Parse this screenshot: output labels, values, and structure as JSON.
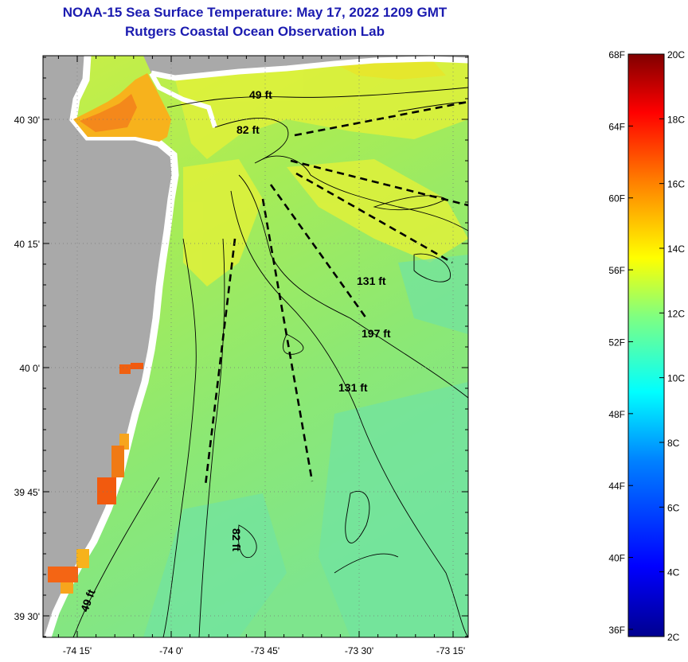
{
  "title": "NOAA-15 Sea Surface Temperature:  May 17, 2022 1209 GMT",
  "subtitle": "Rutgers Coastal Ocean Observation Lab",
  "y_ticks": [
    "40 30'",
    "40 15'",
    "40 0'",
    "39 45'",
    "39 30'"
  ],
  "x_ticks": [
    "-74 15'",
    "-74 0'",
    "-73 45'",
    "-73 30'",
    "-73 15'"
  ],
  "isobath_labels": [
    "49 ft",
    "82 ft",
    "131 ft",
    "197 ft",
    "131 ft",
    "82 ft",
    "49 ft"
  ],
  "colorbar": {
    "fahrenheit_labels": [
      "68F",
      "64F",
      "60F",
      "56F",
      "52F",
      "48F",
      "44F",
      "40F",
      "36F"
    ],
    "celsius_labels": [
      "20C",
      "18C",
      "16C",
      "14C",
      "12C",
      "10C",
      "8C",
      "6C",
      "4C",
      "2C"
    ],
    "range_celsius": [
      2,
      20
    ],
    "colors": [
      "#00008f",
      "#0000ff",
      "#0080ff",
      "#00ffff",
      "#80ff80",
      "#ffff00",
      "#ff8000",
      "#ff0000",
      "#800000"
    ]
  },
  "colors": {
    "land": "#a9a9a9",
    "water_main": "#8fe96e",
    "water_warm": "#d7f23a",
    "water_cool": "#74e79c",
    "nearshore_warm": "#f7a51c",
    "nearshore_hot": "#f25a0e",
    "title": "#1b1bb0"
  }
}
